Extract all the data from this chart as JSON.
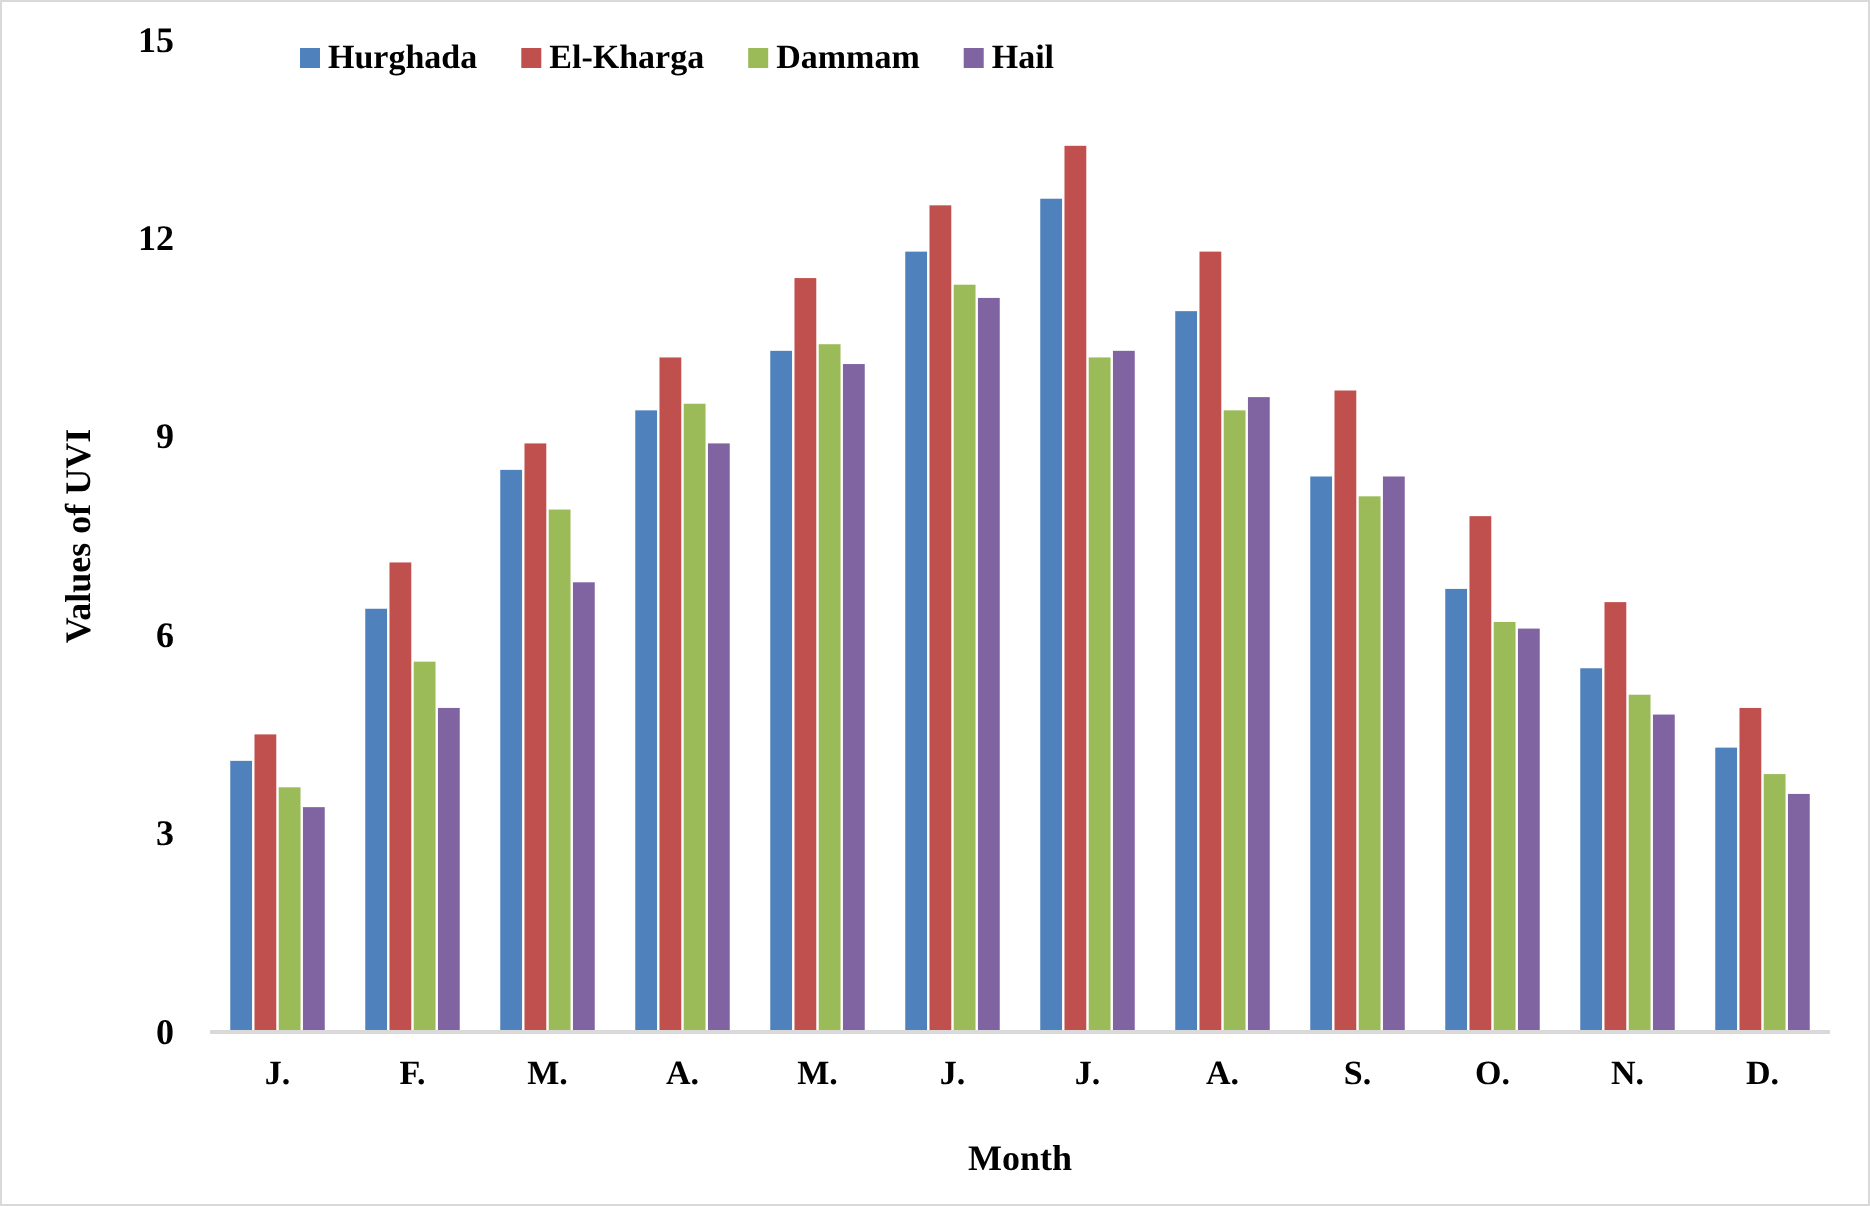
{
  "chart_data": {
    "type": "bar",
    "xlabel": "Month",
    "ylabel": "Values of UVI",
    "categories": [
      "J.",
      "F.",
      "M.",
      "A.",
      "M.",
      "J.",
      "J.",
      "A.",
      "S.",
      "O.",
      "N.",
      "D."
    ],
    "series": [
      {
        "name": "Hurghada",
        "color": "#4f81bd",
        "values": [
          4.1,
          6.4,
          8.5,
          9.4,
          10.3,
          11.8,
          12.6,
          10.9,
          8.4,
          6.7,
          5.5,
          4.3
        ]
      },
      {
        "name": "El-Kharga",
        "color": "#c0504d",
        "values": [
          4.5,
          7.1,
          8.9,
          10.2,
          11.4,
          12.5,
          13.4,
          11.8,
          9.7,
          7.8,
          6.5,
          4.9
        ]
      },
      {
        "name": "Dammam",
        "color": "#9bbb59",
        "values": [
          3.7,
          5.6,
          7.9,
          9.5,
          10.4,
          11.3,
          10.2,
          9.4,
          8.1,
          6.2,
          5.1,
          3.9
        ]
      },
      {
        "name": "Hail",
        "color": "#8064a2",
        "values": [
          3.4,
          4.9,
          6.8,
          8.9,
          10.1,
          11.1,
          10.3,
          9.6,
          8.4,
          6.1,
          4.8,
          3.6
        ]
      }
    ],
    "ylim": [
      0,
      15
    ],
    "yticks": [
      0,
      3,
      6,
      9,
      12,
      15
    ],
    "grid": false,
    "legend": "top"
  }
}
